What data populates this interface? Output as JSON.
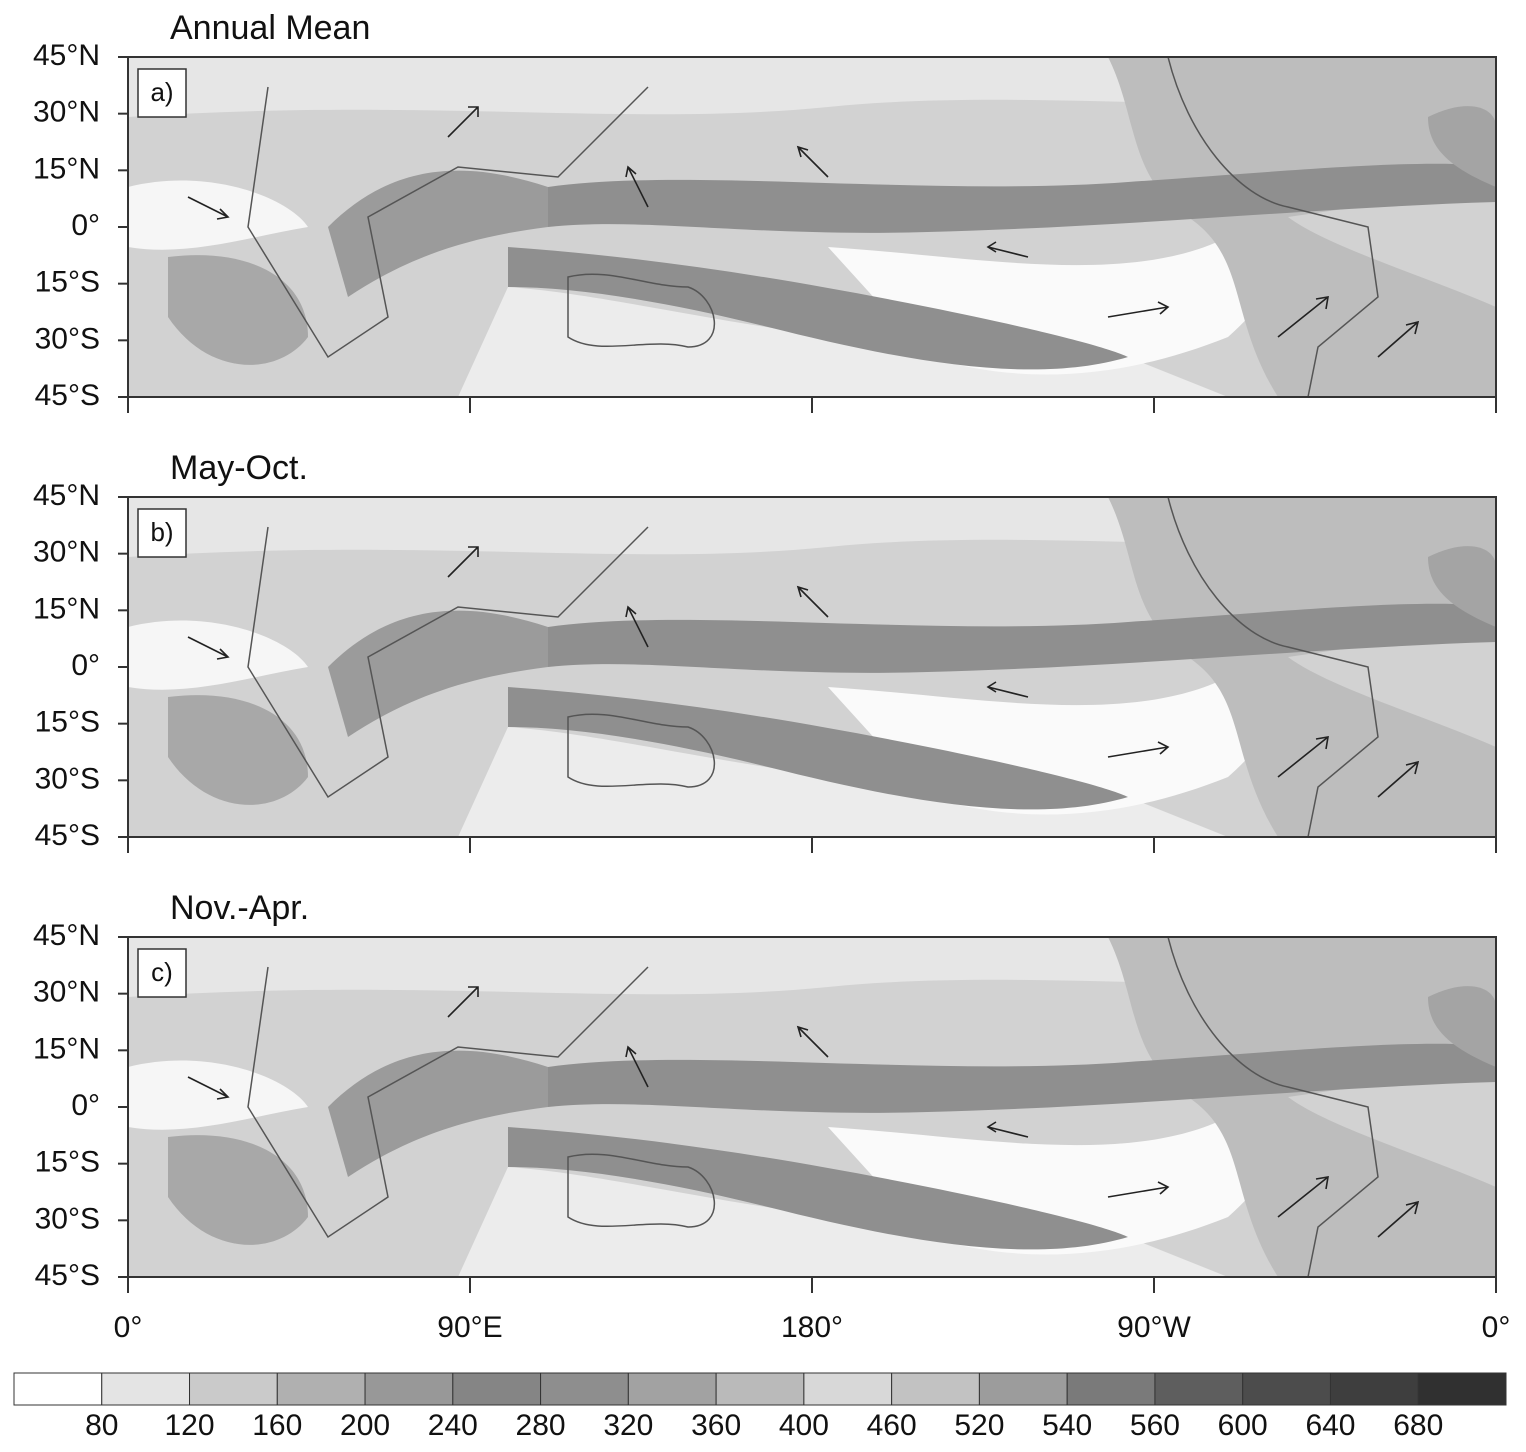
{
  "panels": [
    {
      "title": "Annual Mean",
      "label": "a)"
    },
    {
      "title": "May-Oct.",
      "label": "b)"
    },
    {
      "title": "Nov.-Apr.",
      "label": "c)"
    }
  ],
  "lat_range": [
    -45,
    45
  ],
  "lon_range": [
    0,
    360
  ],
  "lat_ticks": [
    {
      "value": 45,
      "label": "45°N"
    },
    {
      "value": 30,
      "label": "30°N"
    },
    {
      "value": 15,
      "label": "15°N"
    },
    {
      "value": 0,
      "label": "0°"
    },
    {
      "value": -15,
      "label": "15°S"
    },
    {
      "value": -30,
      "label": "30°S"
    },
    {
      "value": -45,
      "label": "45°S"
    }
  ],
  "lon_ticks": [
    {
      "value": 0,
      "label": "0°"
    },
    {
      "value": 90,
      "label": "90°E"
    },
    {
      "value": 180,
      "label": "180°"
    },
    {
      "value": 270,
      "label": "90°W"
    },
    {
      "value": 360,
      "label": "0°"
    }
  ],
  "colorbar": {
    "levels": [
      80,
      120,
      160,
      200,
      240,
      280,
      320,
      360,
      400,
      460,
      520,
      540,
      560,
      600,
      640,
      680
    ],
    "colors": [
      "#ffffff",
      "#e4e4e4",
      "#cacaca",
      "#b0b0b0",
      "#989898",
      "#858585",
      "#8e8e8e",
      "#a2a2a2",
      "#bababa",
      "#d8d8d8",
      "#c2c2c2",
      "#9c9c9c",
      "#7a7a7a",
      "#5e5e5e",
      "#4c4c4c",
      "#3e3e3e",
      "#303030"
    ]
  }
}
